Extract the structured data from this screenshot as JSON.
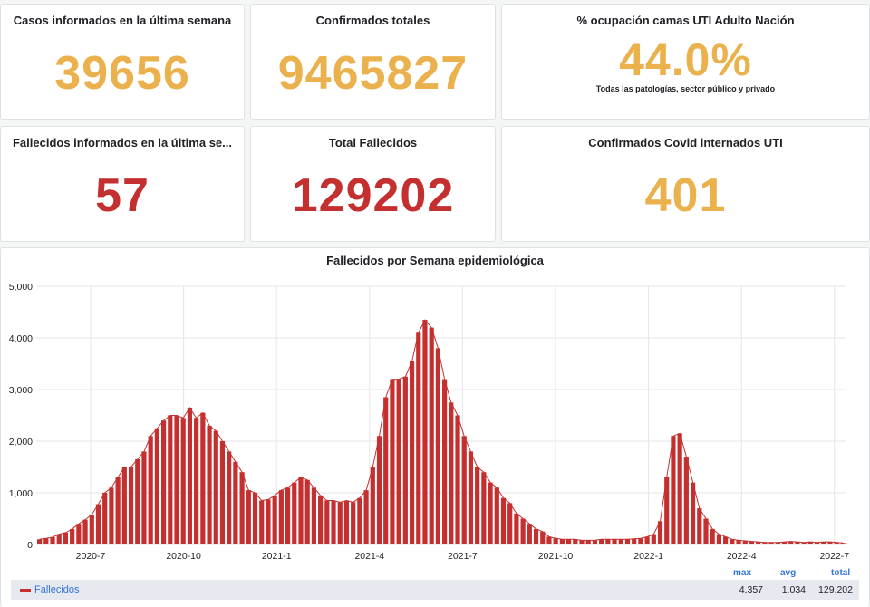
{
  "stats": {
    "casos_semana": {
      "title": "Casos informados en la última semana",
      "value": "39656",
      "color": "#eab14d"
    },
    "confirmados_totales": {
      "title": "Confirmados totales",
      "value": "9465827",
      "color": "#eab14d"
    },
    "ocupacion_uti": {
      "title": "% ocupación camas UTI Adulto Nación",
      "value": "44.0%",
      "subtitle": "Todas las patologías, sector público y privado",
      "color": "#eab14d"
    },
    "fallecidos_semana": {
      "title": "Fallecidos informados en la última se...",
      "value": "57",
      "color": "#c4302f"
    },
    "total_fallecidos": {
      "title": "Total Fallecidos",
      "value": "129202",
      "color": "#c4302f"
    },
    "internados_uti": {
      "title": "Confirmados Covid internados UTI",
      "value": "401",
      "color": "#eab14d"
    }
  },
  "chart_data": {
    "type": "bar",
    "title": "Fallecidos por Semana epidemiológica",
    "ylim": [
      0,
      5000
    ],
    "yticks": [
      "0",
      "1,000",
      "2,000",
      "3,000",
      "4,000",
      "5,000"
    ],
    "xticks": [
      "2020-7",
      "2020-10",
      "2021-1",
      "2021-4",
      "2021-7",
      "2021-10",
      "2022-1",
      "2022-4",
      "2022-7"
    ],
    "grid": true,
    "color": "#c4302f",
    "series": [
      {
        "name": "Fallecidos",
        "values": [
          100,
          120,
          140,
          200,
          230,
          300,
          400,
          480,
          580,
          780,
          1000,
          1100,
          1300,
          1500,
          1500,
          1650,
          1800,
          2100,
          2250,
          2400,
          2500,
          2500,
          2450,
          2650,
          2450,
          2550,
          2300,
          2200,
          2000,
          1800,
          1600,
          1400,
          1050,
          1000,
          850,
          870,
          950,
          1050,
          1100,
          1200,
          1300,
          1250,
          1100,
          950,
          850,
          850,
          820,
          850,
          820,
          900,
          1050,
          1500,
          2100,
          2850,
          3200,
          3200,
          3250,
          3550,
          4100,
          4350,
          4200,
          3800,
          3200,
          2750,
          2500,
          2100,
          1800,
          1500,
          1400,
          1200,
          1100,
          900,
          800,
          600,
          500,
          400,
          300,
          250,
          150,
          120,
          100,
          100,
          100,
          80,
          80,
          80,
          100,
          100,
          100,
          100,
          100,
          110,
          120,
          150,
          200,
          450,
          1300,
          2100,
          2150,
          1700,
          1200,
          700,
          500,
          300,
          200,
          150,
          100,
          80,
          70,
          60,
          50,
          40,
          40,
          40,
          50,
          60,
          50,
          40,
          50,
          40,
          50,
          50,
          40,
          30
        ]
      }
    ],
    "legend": {
      "position": "bottom",
      "headers": [
        "max",
        "avg",
        "total"
      ],
      "max": "4,357",
      "avg": "1,034",
      "total": "129,202"
    }
  }
}
